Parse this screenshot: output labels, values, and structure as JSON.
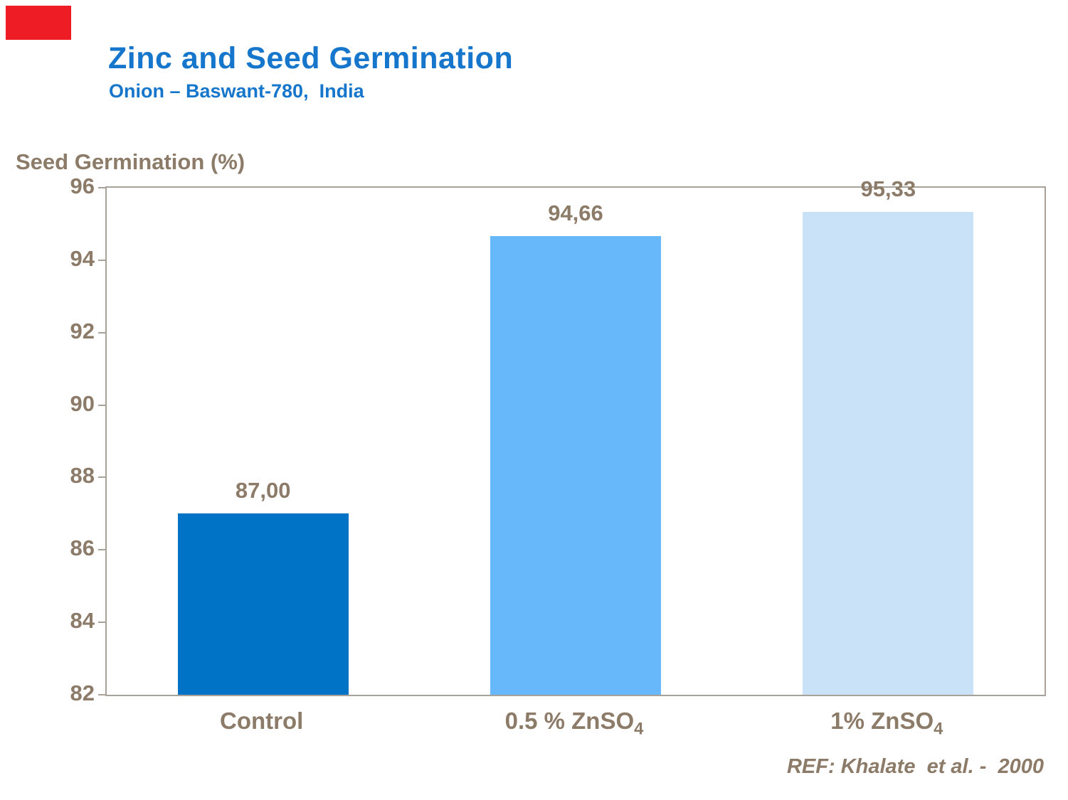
{
  "page": {
    "title": "Zinc and Seed Germination",
    "subtitle": "Onion – Baswant-780,  India",
    "ylabel": "Seed Germination (%)",
    "reference": "REF: Khalate  et al. -  2000"
  },
  "colors": {
    "title_blue": "#1576cb",
    "text_brown": "#8c7b68",
    "logo_red": "#ee1c24",
    "plot_border": "#a8a29b",
    "bar_control": "#0073c6",
    "bar_half_percent": "#66b8fa",
    "bar_one_percent": "#c9e2f8"
  },
  "chart_data": {
    "type": "bar",
    "title": "Zinc and Seed Germination",
    "subtitle": "Onion – Baswant-780, India",
    "xlabel": "",
    "ylabel": "Seed Germination (%)",
    "ylim": [
      82,
      96
    ],
    "yticks": [
      96,
      94,
      92,
      90,
      88,
      86,
      84,
      82
    ],
    "grid": false,
    "legend": "none",
    "categories": [
      "Control",
      "0.5 % ZnSO4",
      "1% ZnSO4"
    ],
    "category_labels": [
      {
        "text": "Control",
        "sub": ""
      },
      {
        "text": "0.5 % ZnSO",
        "sub": "4"
      },
      {
        "text": "1% ZnSO",
        "sub": "4"
      }
    ],
    "values": [
      87.0,
      94.66,
      95.33
    ],
    "value_labels": [
      "87,00",
      "94,66",
      "95,33"
    ],
    "bar_colors": [
      "#0073c6",
      "#66b8fa",
      "#c9e2f8"
    ],
    "source": "REF: Khalate et al. - 2000"
  }
}
